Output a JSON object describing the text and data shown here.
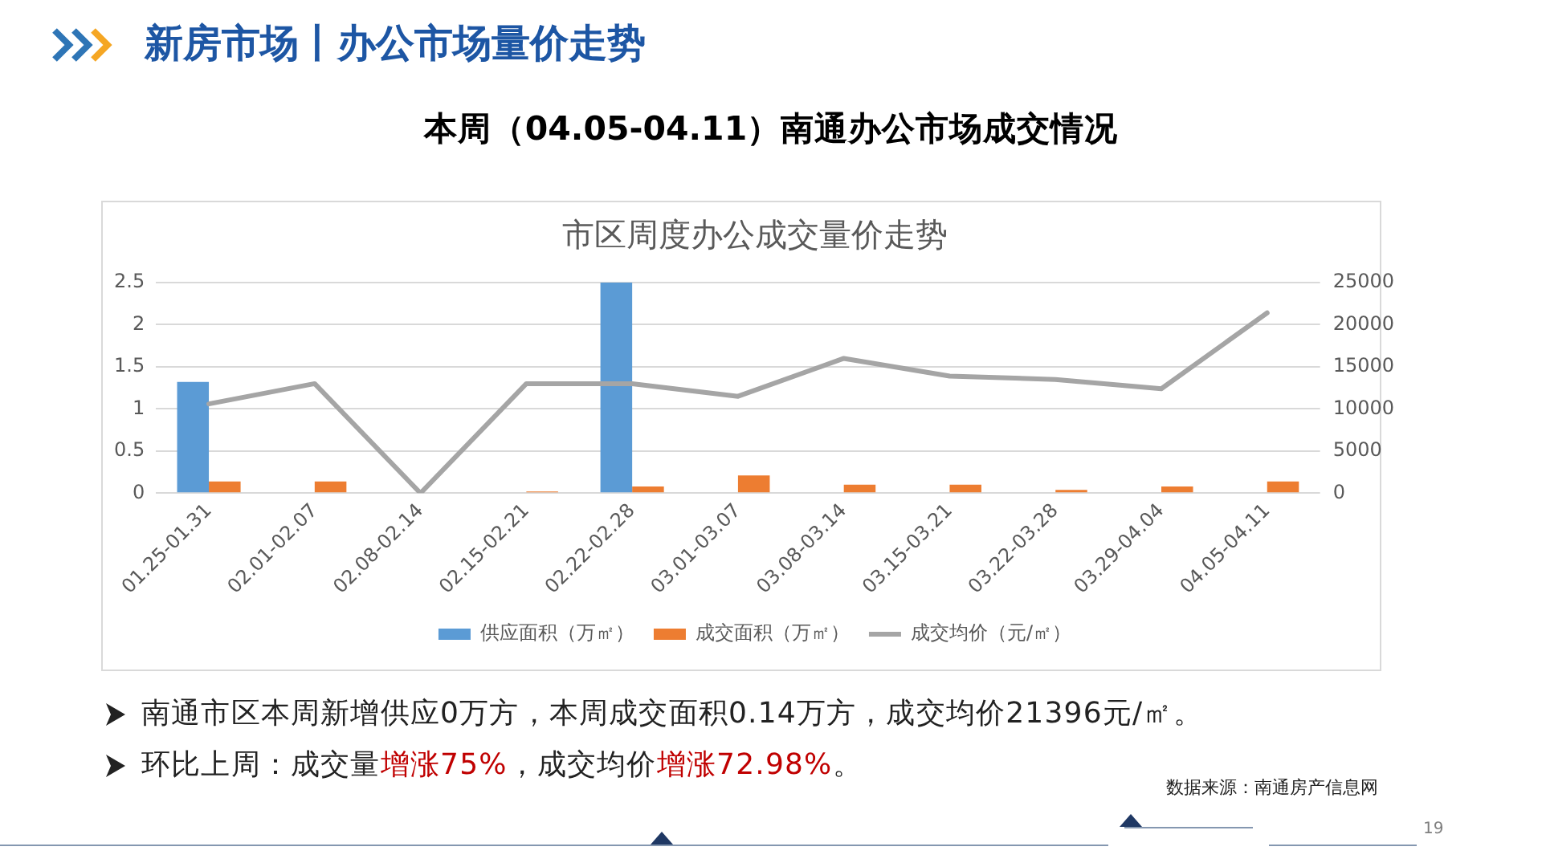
{
  "chart_data": {
    "type": "bar",
    "title": "市区周度办公成交量价走势",
    "subtitle": "本周（04.05-04.11）南通办公市场成交情况",
    "annotations": [
      "新房市场丨办公市场量价走势",
      "南通市区本周新增供应0万方，本周成交面积0.14万方，成交均价21396元/㎡。",
      "环比上周：成交量",
      "增涨75%",
      "，成交均价",
      "增涨72.98%",
      "。",
      "数据来源：南通房产信息网",
      "19"
    ],
    "categories": [
      "01.25-01.31",
      "02.01-02.07",
      "02.08-02.14",
      "02.15-02.21",
      "02.22-02.28",
      "03.01-03.07",
      "03.08-03.14",
      "03.15-03.21",
      "03.22-03.28",
      "03.29-04.04",
      "04.05-04.11"
    ],
    "series": [
      {
        "name": "供应面积（万㎡）",
        "color": "#5b9bd5",
        "values": [
          1.32,
          0,
          0,
          0,
          2.5,
          0,
          0,
          0,
          0,
          0,
          0
        ]
      },
      {
        "name": "成交面积（万㎡）",
        "color": "#ed7d31",
        "values": [
          0.14,
          0.14,
          0,
          0.02,
          0.08,
          0.21,
          0.1,
          0.1,
          0.04,
          0.08,
          0.14
        ]
      },
      {
        "name": "成交均价（元/㎡）",
        "type": "line",
        "axis": "y2",
        "color": "#a5a5a5",
        "values": [
          10600,
          13000,
          0,
          13000,
          13000,
          11500,
          16000,
          13900,
          13500,
          12400,
          21400
        ]
      }
    ],
    "ylim": [
      0,
      2.5
    ],
    "yticks": [
      0,
      0.5,
      1,
      1.5,
      2,
      2.5
    ],
    "y2lim": [
      0,
      25000
    ],
    "y2ticks": [
      0,
      5000,
      10000,
      15000,
      20000,
      25000
    ],
    "grid": "y",
    "legend": "bottom"
  }
}
